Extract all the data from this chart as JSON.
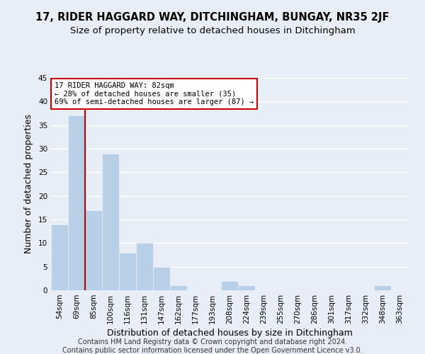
{
  "title": "17, RIDER HAGGARD WAY, DITCHINGHAM, BUNGAY, NR35 2JF",
  "subtitle": "Size of property relative to detached houses in Ditchingham",
  "xlabel": "Distribution of detached houses by size in Ditchingham",
  "ylabel": "Number of detached properties",
  "bar_labels": [
    "54sqm",
    "69sqm",
    "85sqm",
    "100sqm",
    "116sqm",
    "131sqm",
    "147sqm",
    "162sqm",
    "177sqm",
    "193sqm",
    "208sqm",
    "224sqm",
    "239sqm",
    "255sqm",
    "270sqm",
    "286sqm",
    "301sqm",
    "317sqm",
    "332sqm",
    "348sqm",
    "363sqm"
  ],
  "bar_values": [
    14,
    37,
    17,
    29,
    8,
    10,
    5,
    1,
    0,
    0,
    2,
    1,
    0,
    0,
    0,
    0,
    0,
    0,
    0,
    1,
    0
  ],
  "bar_color": "#b8cfe8",
  "highlight_line_color": "#cc0000",
  "annotation_text": "17 RIDER HAGGARD WAY: 82sqm\n← 28% of detached houses are smaller (35)\n69% of semi-detached houses are larger (87) →",
  "annotation_box_color": "#ffffff",
  "annotation_box_edgecolor": "#cc0000",
  "ylim": [
    0,
    45
  ],
  "yticks": [
    0,
    5,
    10,
    15,
    20,
    25,
    30,
    35,
    40,
    45
  ],
  "footer_line1": "Contains HM Land Registry data © Crown copyright and database right 2024.",
  "footer_line2": "Contains public sector information licensed under the Open Government Licence v3.0.",
  "bg_color": "#e8eef7",
  "plot_bg_color": "#e8eef7",
  "grid_color": "#ffffff",
  "title_fontsize": 10.5,
  "subtitle_fontsize": 9.5,
  "axis_label_fontsize": 9,
  "tick_fontsize": 7.5,
  "footer_fontsize": 7
}
